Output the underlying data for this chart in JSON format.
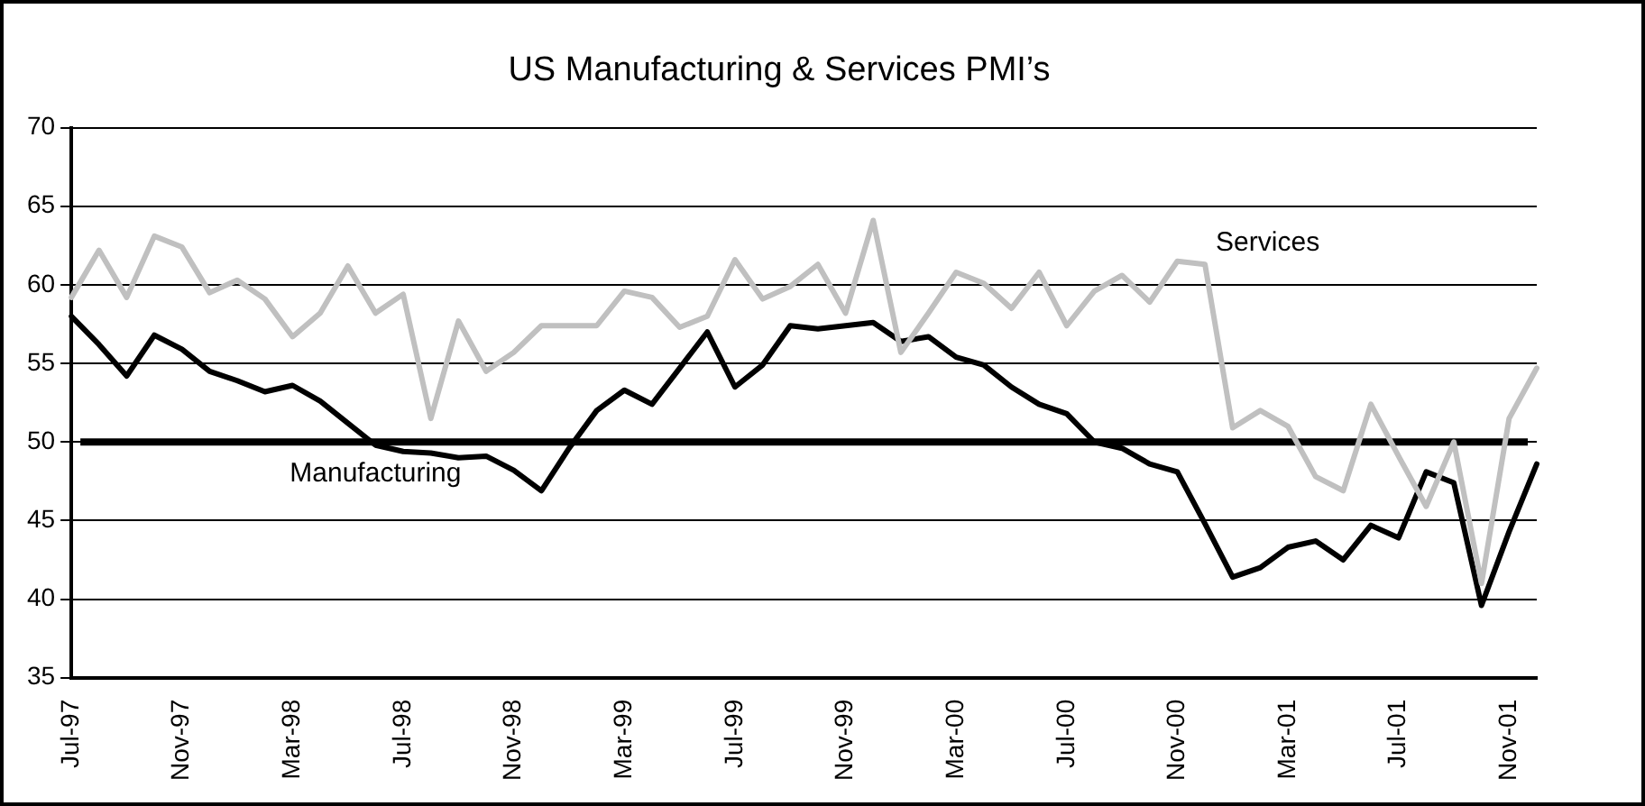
{
  "chart_data": {
    "type": "line",
    "title": "US Manufacturing & Services PMI’s",
    "categories": [
      "Jul-97",
      null,
      null,
      null,
      "Nov-97",
      null,
      null,
      null,
      "Mar-98",
      null,
      null,
      null,
      "Jul-98",
      null,
      null,
      null,
      "Nov-98",
      null,
      null,
      null,
      "Mar-99",
      null,
      null,
      null,
      "Jul-99",
      null,
      null,
      null,
      "Nov-99",
      null,
      null,
      null,
      "Mar-00",
      null,
      null,
      null,
      "Jul-00",
      null,
      null,
      null,
      "Nov-00",
      null,
      null,
      null,
      "Mar-01",
      null,
      null,
      null,
      "Jul-01",
      null,
      null,
      null,
      "Nov-01",
      null
    ],
    "series": [
      {
        "name": "Manufacturing",
        "color": "#000000",
        "values": [
          58.0,
          56.2,
          54.2,
          56.8,
          55.9,
          54.5,
          53.9,
          53.2,
          53.6,
          52.6,
          51.2,
          49.8,
          49.4,
          49.3,
          49.0,
          49.1,
          48.2,
          46.9,
          49.6,
          52.0,
          53.3,
          52.4,
          54.7,
          57.0,
          53.5,
          54.9,
          57.4,
          57.2,
          57.4,
          57.6,
          56.4,
          56.7,
          55.4,
          54.9,
          53.5,
          52.4,
          51.8,
          50.0,
          49.6,
          48.6,
          48.1,
          44.8,
          41.4,
          42.0,
          43.3,
          43.7,
          42.5,
          44.7,
          43.9,
          48.1,
          47.4,
          39.6,
          44.3,
          48.6
        ]
      },
      {
        "name": "Services",
        "color": "#c0c0c0",
        "values": [
          59.2,
          62.2,
          59.2,
          63.1,
          62.4,
          59.5,
          60.3,
          59.1,
          56.7,
          58.2,
          61.2,
          58.2,
          59.4,
          51.5,
          57.7,
          54.5,
          55.7,
          57.4,
          57.4,
          57.4,
          59.6,
          59.2,
          57.3,
          58.0,
          61.6,
          59.1,
          59.9,
          61.3,
          58.2,
          64.1,
          55.7,
          58.2,
          60.8,
          60.1,
          58.5,
          60.8,
          57.4,
          59.6,
          60.6,
          58.9,
          61.5,
          61.3,
          50.9,
          52.0,
          51.0,
          47.8,
          46.9,
          52.4,
          49.1,
          45.9,
          50.0,
          41.0,
          51.5,
          54.7
        ]
      }
    ],
    "ylim": [
      35,
      70
    ],
    "yticks": [
      35,
      40,
      45,
      50,
      55,
      60,
      65,
      70
    ],
    "grid": "y",
    "legend": false,
    "marker": "none",
    "line_style": "solid",
    "ref_lines": [
      {
        "axis": "y",
        "value": 50,
        "color": "#000000"
      }
    ]
  }
}
